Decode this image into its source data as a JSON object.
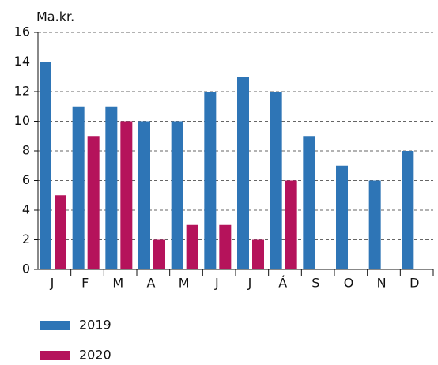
{
  "chart_data": {
    "type": "bar",
    "y_label": "Ma.kr.",
    "categories": [
      "J",
      "F",
      "M",
      "A",
      "M",
      "J",
      "J",
      "Á",
      "S",
      "O",
      "N",
      "D"
    ],
    "series": [
      {
        "name": "2019",
        "color": "#2e75b6",
        "values": [
          14,
          11,
          11,
          10,
          10,
          12,
          13,
          12,
          9,
          7,
          6,
          8
        ]
      },
      {
        "name": "2020",
        "color": "#b5135b",
        "values": [
          5,
          9,
          10,
          2,
          3,
          3,
          2,
          6,
          null,
          null,
          null,
          null
        ]
      }
    ],
    "ylim": [
      0,
      16
    ],
    "yticks": [
      0,
      2,
      4,
      6,
      8,
      10,
      12,
      14,
      16
    ],
    "grid": true
  }
}
